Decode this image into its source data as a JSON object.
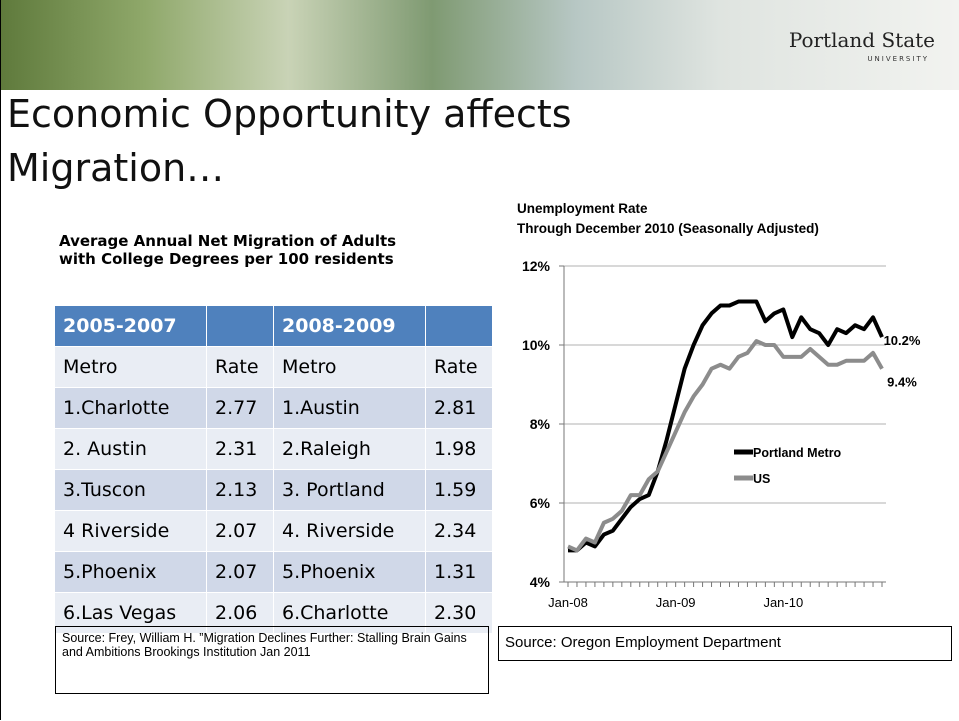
{
  "header": {
    "logo": "Portland State",
    "logo_sub": "UNIVERSITY"
  },
  "title": [
    "Economic Opportunity affects",
    "Migration…"
  ],
  "table": {
    "caption": [
      "Average Annual Net Migration of Adults",
      "with College Degrees per 100 residents"
    ],
    "periods": [
      "2005-2007",
      "2008-2009"
    ],
    "columns": [
      "Metro",
      "Rate",
      "Metro",
      "Rate"
    ],
    "rows": [
      [
        "1.Charlotte",
        "2.77",
        "1.Austin",
        "2.81"
      ],
      [
        "2. Austin",
        "2.31",
        "2.Raleigh",
        "1.98"
      ],
      [
        "3.Tuscon",
        "2.13",
        "3. Portland",
        "1.59"
      ],
      [
        "4 Riverside",
        "2.07",
        "4. Riverside",
        "2.34"
      ],
      [
        "5.Phoenix",
        "2.07",
        "5.Phoenix",
        "1.31"
      ],
      [
        "6.Las Vegas",
        "2.06",
        "6.Charlotte",
        "2.30"
      ]
    ],
    "source": "Source: Frey, William H. ”Migration Declines Further: Stalling Brain Gains and Ambitions Brookings Institution Jan 2011"
  },
  "chart_data": {
    "type": "line",
    "title": [
      "Unemployment Rate",
      "Through December 2010 (Seasonally Adjusted)"
    ],
    "categories": [
      "Jan-08",
      null,
      null,
      null,
      null,
      null,
      null,
      null,
      null,
      null,
      null,
      null,
      "Jan-09",
      null,
      null,
      null,
      null,
      null,
      null,
      null,
      null,
      null,
      null,
      null,
      "Jan-10",
      null,
      null,
      null,
      null,
      null,
      null,
      null,
      null,
      null,
      null,
      null
    ],
    "ylim": [
      4,
      12
    ],
    "yticks": [
      {
        "value": 4,
        "label": "4%"
      },
      {
        "value": 6,
        "label": "6%"
      },
      {
        "value": 8,
        "label": "8%"
      },
      {
        "value": 10,
        "label": "10%"
      },
      {
        "value": 12,
        "label": "12%"
      }
    ],
    "grid": true,
    "series": [
      {
        "name": "Portland Metro",
        "color": "#000000",
        "values": [
          4.8,
          4.8,
          5.0,
          4.9,
          5.2,
          5.3,
          5.6,
          5.9,
          6.1,
          6.2,
          6.8,
          7.6,
          8.5,
          9.4,
          10.0,
          10.5,
          10.8,
          11.0,
          11.0,
          11.1,
          11.1,
          11.1,
          10.6,
          10.8,
          10.9,
          10.2,
          10.7,
          10.4,
          10.3,
          10.0,
          10.4,
          10.3,
          10.5,
          10.4,
          10.7,
          10.2
        ],
        "value_labels": [
          null,
          null,
          null,
          null,
          null,
          null,
          null,
          null,
          null,
          null,
          null,
          null,
          null,
          null,
          null,
          null,
          null,
          null,
          null,
          null,
          null,
          null,
          null,
          null,
          null,
          null,
          null,
          null,
          null,
          null,
          null,
          null,
          null,
          null,
          null,
          "10.2%"
        ]
      },
      {
        "name": "US",
        "color": "#8c8c8c",
        "values": [
          4.9,
          4.8,
          5.1,
          5.0,
          5.5,
          5.6,
          5.8,
          6.2,
          6.2,
          6.6,
          6.8,
          7.3,
          7.8,
          8.3,
          8.7,
          9.0,
          9.4,
          9.5,
          9.4,
          9.7,
          9.8,
          10.1,
          10.0,
          10.0,
          9.7,
          9.7,
          9.7,
          9.9,
          9.7,
          9.5,
          9.5,
          9.6,
          9.6,
          9.6,
          9.8,
          9.4
        ],
        "value_labels": [
          null,
          null,
          null,
          null,
          null,
          null,
          null,
          null,
          null,
          null,
          null,
          null,
          null,
          null,
          null,
          null,
          null,
          null,
          null,
          null,
          null,
          null,
          null,
          null,
          null,
          null,
          null,
          null,
          null,
          null,
          null,
          null,
          null,
          null,
          null,
          "9.4%"
        ]
      }
    ],
    "source": "Source: Oregon Employment Department"
  }
}
